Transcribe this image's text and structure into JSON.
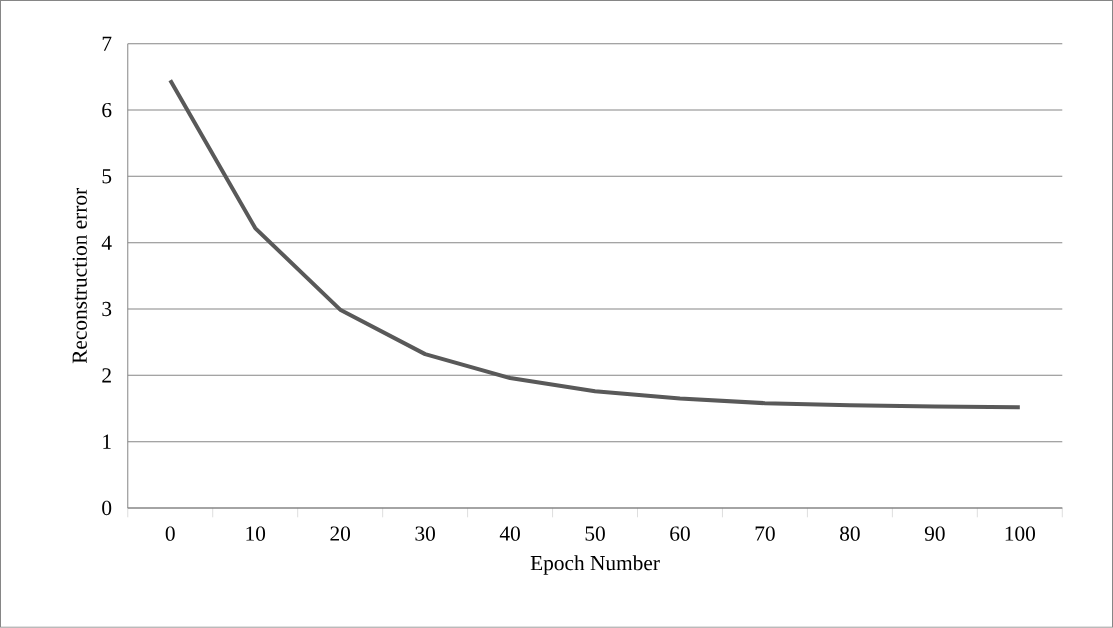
{
  "chart_data": {
    "type": "line",
    "xlabel": "Epoch Number",
    "ylabel": "Reconstruction error",
    "categories": [
      "0",
      "10",
      "20",
      "30",
      "40",
      "50",
      "60",
      "70",
      "80",
      "90",
      "100"
    ],
    "series": [
      {
        "color": "#595959",
        "values": [
          6.45,
          4.22,
          2.99,
          2.32,
          1.96,
          1.76,
          1.65,
          1.58,
          1.55,
          1.53,
          1.52
        ]
      }
    ],
    "ylim": [
      0,
      7
    ],
    "yticks": [
      0,
      1,
      2,
      3,
      4,
      5,
      6,
      7
    ],
    "grid": "y",
    "marker": "none"
  }
}
